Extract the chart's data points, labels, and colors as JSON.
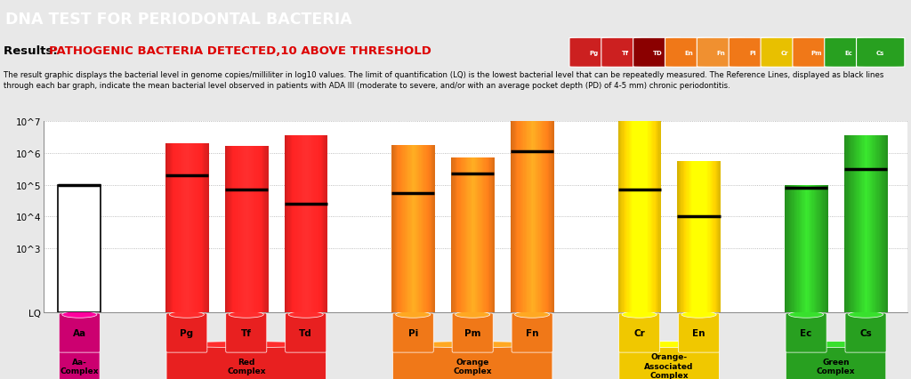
{
  "title": "DNA TEST FOR PERIODONTAL BACTERIA",
  "title_bg": "#1a9fd4",
  "results_label": "Results: ",
  "results_text": "PATHOGENIC BACTERIA DETECTED,10 ABOVE THRESHOLD",
  "description": "The result graphic displays the bacterial level in genome copies/milliliter in log10 values. The limit of quantification (LQ) is the lowest bacterial level that can be repeatedly measured. The Reference Lines, displayed as black lines through each bar graph, indicate the mean bacterial level observed in patients with ADA III (moderate to severe, and/or with an average pocket depth (PD) of 4-5 mm) chronic periodontitis.",
  "bars": [
    {
      "label": "Aa",
      "group_idx": 0,
      "value": 5.0,
      "ref": 5.0,
      "color": "#cc0070",
      "filled": false
    },
    {
      "label": "Pg",
      "group_idx": 1,
      "value": 6.3,
      "ref": 5.3,
      "color": "#e82020",
      "filled": true
    },
    {
      "label": "Tf",
      "group_idx": 1,
      "value": 6.2,
      "ref": 4.85,
      "color": "#e82020",
      "filled": true
    },
    {
      "label": "Td",
      "group_idx": 1,
      "value": 6.55,
      "ref": 4.4,
      "color": "#e82020",
      "filled": true
    },
    {
      "label": "Pi",
      "group_idx": 2,
      "value": 6.25,
      "ref": 4.75,
      "color": "#f07818",
      "filled": true
    },
    {
      "label": "Pm",
      "group_idx": 2,
      "value": 5.85,
      "ref": 5.35,
      "color": "#f07818",
      "filled": true
    },
    {
      "label": "Fn",
      "group_idx": 2,
      "value": 7.0,
      "ref": 6.05,
      "color": "#f07818",
      "filled": true
    },
    {
      "label": "Cr",
      "group_idx": 3,
      "value": 7.0,
      "ref": 4.85,
      "color": "#f0c800",
      "filled": true
    },
    {
      "label": "En",
      "group_idx": 3,
      "value": 5.75,
      "ref": 4.0,
      "color": "#f0c800",
      "filled": true
    },
    {
      "label": "Ec",
      "group_idx": 4,
      "value": 5.0,
      "ref": 4.9,
      "color": "#28a020",
      "filled": true
    },
    {
      "label": "Cs",
      "group_idx": 4,
      "value": 6.55,
      "ref": 5.5,
      "color": "#28a020",
      "filled": true
    }
  ],
  "groups": [
    {
      "name": "Aa-\nComplex",
      "bar_indices": [
        0
      ],
      "color": "#cc0070",
      "label_color": "#000000"
    },
    {
      "name": "Red\nComplex",
      "bar_indices": [
        1,
        2,
        3
      ],
      "color": "#e82020",
      "label_color": "#000000"
    },
    {
      "name": "Orange\nComplex",
      "bar_indices": [
        4,
        5,
        6
      ],
      "color": "#f07818",
      "label_color": "#000000"
    },
    {
      "name": "Orange-\nAssociated\nComplex",
      "bar_indices": [
        7,
        8
      ],
      "color": "#f0c800",
      "label_color": "#000000"
    },
    {
      "name": "Green\nComplex",
      "bar_indices": [
        9,
        10
      ],
      "color": "#28a020",
      "label_color": "#000000"
    }
  ],
  "positions": [
    0,
    1.8,
    2.8,
    3.8,
    5.6,
    6.6,
    7.6,
    9.4,
    10.4,
    12.2,
    13.2
  ],
  "ymin": 1.0,
  "ymax": 7.0,
  "ytick_labels": [
    "LQ",
    "10^3",
    "10^4",
    "10^5",
    "10^6",
    "10^7"
  ],
  "ytick_values": [
    1.0,
    3.0,
    4.0,
    5.0,
    6.0,
    7.0
  ],
  "bg_color": "#e8e8e8",
  "plot_bg_color": "#ffffff",
  "legend_items": [
    {
      "label": "Pg",
      "color": "#cc2020"
    },
    {
      "label": "Tf",
      "color": "#cc2020"
    },
    {
      "label": "TD",
      "color": "#8b0000"
    },
    {
      "label": "En",
      "color": "#f07818"
    },
    {
      "label": "Fn",
      "color": "#f09030"
    },
    {
      "label": "Pi",
      "color": "#f07818"
    },
    {
      "label": "Cr",
      "color": "#e8c000"
    },
    {
      "label": "Pm",
      "color": "#f07818"
    },
    {
      "label": "Ec",
      "color": "#28a020"
    },
    {
      "label": "Cs",
      "color": "#28a020"
    }
  ]
}
